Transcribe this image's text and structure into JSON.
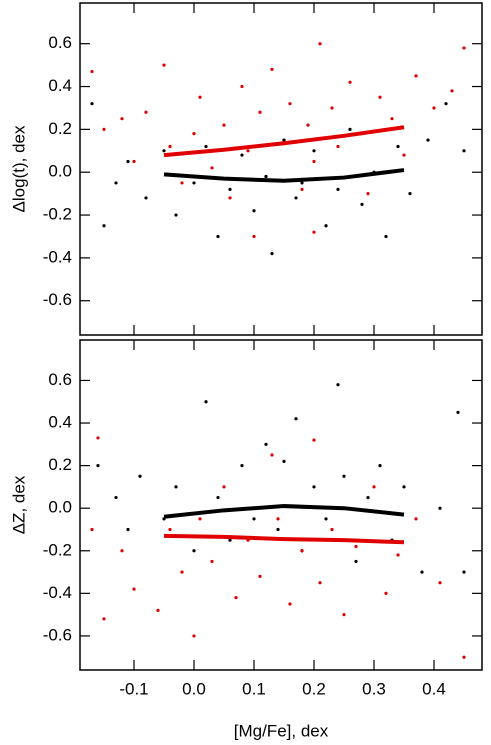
{
  "chart_data": [
    {
      "type": "scatter",
      "ylabel": "Δlog(t), dex",
      "xlim": [
        -0.19,
        0.48
      ],
      "ylim": [
        -0.76,
        0.79
      ],
      "xticks": [
        -0.1,
        {
          "value": 0,
          "label": "0.0"
        },
        0.1,
        0.2,
        0.3,
        0.4
      ],
      "xtick_labels": false,
      "yticks": [
        -0.6,
        -0.4,
        -0.2,
        {
          "value": 0,
          "label": "0.0"
        },
        0.2,
        0.4,
        0.6
      ],
      "series": [
        {
          "mode": "markers",
          "color": "#e00000",
          "x": [
            -0.17,
            -0.15,
            -0.12,
            -0.1,
            -0.08,
            -0.05,
            -0.04,
            -0.02,
            0.0,
            0.01,
            0.03,
            0.05,
            0.06,
            0.08,
            0.09,
            0.11,
            0.12,
            0.13,
            0.15,
            0.16,
            0.18,
            0.19,
            0.2,
            0.21,
            0.23,
            0.24,
            0.26,
            0.28,
            0.29,
            0.31,
            0.33,
            0.35,
            0.37,
            0.4,
            0.43,
            0.45,
            0.1,
            0.2
          ],
          "values": [
            0.47,
            0.2,
            0.25,
            0.05,
            0.28,
            0.5,
            0.12,
            -0.05,
            0.18,
            0.35,
            0.02,
            0.22,
            -0.12,
            0.4,
            0.1,
            0.28,
            -0.02,
            0.48,
            0.15,
            0.32,
            -0.08,
            0.22,
            0.05,
            0.6,
            0.3,
            0.12,
            0.42,
            0.18,
            -0.1,
            0.35,
            0.25,
            0.08,
            0.45,
            0.3,
            0.38,
            0.58,
            -0.3,
            -0.28
          ]
        },
        {
          "mode": "markers",
          "color": "#000000",
          "x": [
            -0.17,
            -0.15,
            -0.13,
            -0.11,
            -0.08,
            -0.05,
            -0.03,
            0.0,
            0.02,
            0.04,
            0.06,
            0.08,
            0.1,
            0.12,
            0.13,
            0.15,
            0.17,
            0.18,
            0.2,
            0.22,
            0.24,
            0.26,
            0.28,
            0.3,
            0.32,
            0.34,
            0.36,
            0.39,
            0.42,
            0.45
          ],
          "values": [
            0.32,
            -0.25,
            -0.05,
            0.05,
            -0.12,
            0.1,
            -0.2,
            -0.05,
            0.12,
            -0.3,
            -0.08,
            0.08,
            -0.18,
            -0.02,
            -0.38,
            0.15,
            -0.12,
            -0.05,
            0.1,
            -0.25,
            -0.08,
            0.2,
            -0.15,
            0.0,
            -0.3,
            0.12,
            -0.1,
            0.15,
            0.32,
            0.1
          ]
        },
        {
          "mode": "line",
          "color": "#e00000",
          "x": [
            -0.05,
            0.05,
            0.15,
            0.25,
            0.35
          ],
          "values": [
            0.08,
            0.105,
            0.135,
            0.17,
            0.21
          ]
        },
        {
          "mode": "line",
          "color": "#000000",
          "x": [
            -0.05,
            0.05,
            0.15,
            0.25,
            0.35
          ],
          "values": [
            -0.01,
            -0.03,
            -0.04,
            -0.025,
            0.01
          ]
        }
      ]
    },
    {
      "type": "scatter",
      "ylabel": "ΔZ, dex",
      "xlabel": "[Mg/Fe], dex",
      "xlim": [
        -0.19,
        0.48
      ],
      "ylim": [
        -0.76,
        0.79
      ],
      "xticks": [
        -0.1,
        {
          "value": 0,
          "label": "0.0"
        },
        0.1,
        0.2,
        0.3,
        0.4
      ],
      "xtick_labels": true,
      "yticks": [
        -0.6,
        -0.4,
        -0.2,
        {
          "value": 0,
          "label": "0.0"
        },
        0.2,
        0.4,
        0.6
      ],
      "series": [
        {
          "mode": "markers",
          "color": "#000000",
          "x": [
            -0.16,
            -0.13,
            -0.11,
            -0.09,
            -0.05,
            -0.03,
            0.0,
            0.02,
            0.04,
            0.06,
            0.08,
            0.1,
            0.12,
            0.14,
            0.15,
            0.17,
            0.18,
            0.2,
            0.22,
            0.24,
            0.25,
            0.27,
            0.29,
            0.31,
            0.33,
            0.35,
            0.38,
            0.41,
            0.44,
            0.45
          ],
          "values": [
            0.2,
            0.05,
            -0.1,
            0.15,
            -0.05,
            0.1,
            -0.2,
            0.5,
            0.05,
            -0.15,
            0.2,
            -0.05,
            0.3,
            -0.1,
            0.22,
            0.42,
            -0.2,
            0.1,
            -0.05,
            0.58,
            0.15,
            -0.25,
            0.05,
            0.2,
            -0.15,
            0.1,
            -0.3,
            0.0,
            0.45,
            -0.3
          ]
        },
        {
          "mode": "markers",
          "color": "#e00000",
          "x": [
            -0.17,
            -0.16,
            -0.15,
            -0.12,
            -0.1,
            -0.06,
            -0.04,
            -0.02,
            0.0,
            0.01,
            0.03,
            0.05,
            0.07,
            0.09,
            0.11,
            0.13,
            0.14,
            0.16,
            0.18,
            0.2,
            0.21,
            0.23,
            0.25,
            0.27,
            0.3,
            0.32,
            0.34,
            0.37,
            0.41,
            0.45
          ],
          "values": [
            -0.1,
            0.33,
            -0.52,
            -0.2,
            -0.38,
            -0.48,
            -0.1,
            -0.3,
            -0.6,
            -0.05,
            -0.25,
            0.1,
            -0.42,
            -0.15,
            -0.32,
            0.25,
            -0.05,
            -0.45,
            -0.2,
            0.32,
            -0.35,
            -0.1,
            -0.5,
            -0.18,
            0.1,
            -0.4,
            -0.22,
            -0.05,
            -0.35,
            -0.7
          ]
        },
        {
          "mode": "line",
          "color": "#000000",
          "x": [
            -0.05,
            0.05,
            0.15,
            0.25,
            0.35
          ],
          "values": [
            -0.04,
            -0.01,
            0.01,
            0.0,
            -0.03
          ]
        },
        {
          "mode": "line",
          "color": "#e00000",
          "x": [
            -0.05,
            0.05,
            0.15,
            0.25,
            0.35
          ],
          "values": [
            -0.13,
            -0.135,
            -0.145,
            -0.15,
            -0.16
          ]
        }
      ]
    }
  ]
}
